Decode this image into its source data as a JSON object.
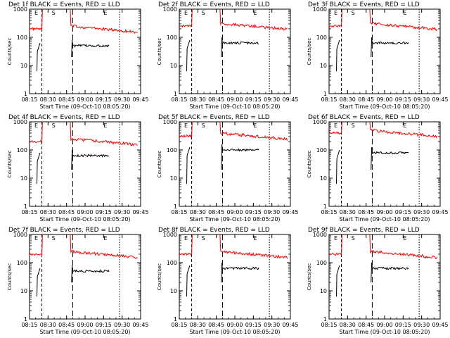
{
  "chart_data": [
    {
      "type": "line",
      "title": "Det 1f BLACK = Events, RED = LLD",
      "xlabel": "Start Time (09-Oct-10 08:05:20)",
      "ylabel": "Counts/sec",
      "x_ticks": [
        "08:15",
        "08:30",
        "08:45",
        "09:00",
        "09:15",
        "09:30",
        "09:45"
      ],
      "y_ticks": [
        "1",
        "10",
        "100",
        "1000"
      ],
      "scale": "log-y",
      "markers": [
        "E",
        "S",
        "E"
      ],
      "vertical_lines_at": [
        "08:25",
        "08:50",
        "09:28"
      ],
      "series": [
        {
          "color": "#ff0000",
          "values": []
        },
        {
          "color": "#000000",
          "values": []
        }
      ]
    },
    {
      "type": "line",
      "title": "Det 2f BLACK = Events, RED = LLD",
      "xlabel": "Start Time (09-Oct-10 08:05:20)",
      "ylabel": "Counts/sec",
      "x_ticks": [
        "08:15",
        "08:30",
        "08:45",
        "09:00",
        "09:15",
        "09:30",
        "09:45"
      ],
      "y_ticks": [
        "1",
        "10",
        "100",
        "1000"
      ],
      "scale": "log-y",
      "markers": [
        "E",
        "S",
        "E"
      ],
      "vertical_lines_at": [
        "08:25",
        "08:50",
        "09:28"
      ],
      "series": [
        {
          "color": "#ff0000",
          "values": []
        },
        {
          "color": "#000000",
          "values": []
        }
      ]
    },
    {
      "type": "line",
      "title": "Det 3f BLACK = Events, RED = LLD",
      "xlabel": "Start Time (09-Oct-10 08:05:20)",
      "ylabel": "Counts/sec",
      "x_ticks": [
        "08:15",
        "08:30",
        "08:45",
        "09:00",
        "09:15",
        "09:30",
        "09:45"
      ],
      "y_ticks": [
        "1",
        "10",
        "100",
        "1000"
      ],
      "scale": "log-y",
      "markers": [
        "E",
        "S",
        "E"
      ],
      "vertical_lines_at": [
        "08:25",
        "08:50",
        "09:28"
      ],
      "series": [
        {
          "color": "#ff0000",
          "values": []
        },
        {
          "color": "#000000",
          "values": []
        }
      ]
    },
    {
      "type": "line",
      "title": "Det 4f BLACK = Events, RED = LLD",
      "xlabel": "Start Time (09-Oct-10 08:05:20)",
      "ylabel": "Counts/sec",
      "x_ticks": [
        "08:15",
        "08:30",
        "08:45",
        "09:00",
        "09:15",
        "09:30",
        "09:45"
      ],
      "y_ticks": [
        "1",
        "10",
        "100",
        "1000"
      ],
      "scale": "log-y",
      "markers": [
        "E",
        "S",
        "E"
      ],
      "vertical_lines_at": [
        "08:25",
        "08:50",
        "09:28"
      ],
      "series": [
        {
          "color": "#ff0000",
          "values": []
        },
        {
          "color": "#000000",
          "values": []
        }
      ]
    },
    {
      "type": "line",
      "title": "Det 5f BLACK = Events, RED = LLD",
      "xlabel": "Start Time (09-Oct-10 08:05:20)",
      "ylabel": "Counts/sec",
      "x_ticks": [
        "08:15",
        "08:30",
        "08:45",
        "09:00",
        "09:15",
        "09:30",
        "09:45"
      ],
      "y_ticks": [
        "1",
        "10",
        "100",
        "1000"
      ],
      "scale": "log-y",
      "markers": [
        "E",
        "S",
        "E"
      ],
      "vertical_lines_at": [
        "08:25",
        "08:50",
        "09:28"
      ],
      "series": [
        {
          "color": "#ff0000",
          "values": []
        },
        {
          "color": "#000000",
          "values": []
        }
      ]
    },
    {
      "type": "line",
      "title": "Det 6f BLACK = Events, RED = LLD",
      "xlabel": "Start Time (09-Oct-10 08:05:20)",
      "ylabel": "Counts/sec",
      "x_ticks": [
        "08:15",
        "08:30",
        "08:45",
        "09:00",
        "09:15",
        "09:30",
        "09:45"
      ],
      "y_ticks": [
        "1",
        "10",
        "100",
        "1000"
      ],
      "scale": "log-y",
      "markers": [
        "E",
        "S",
        "E"
      ],
      "vertical_lines_at": [
        "08:25",
        "08:50",
        "09:28"
      ],
      "series": [
        {
          "color": "#ff0000",
          "values": []
        },
        {
          "color": "#000000",
          "values": []
        }
      ]
    },
    {
      "type": "line",
      "title": "Det 7f BLACK = Events, RED = LLD",
      "xlabel": "Start Time (09-Oct-10 08:05:20)",
      "ylabel": "Counts/sec",
      "x_ticks": [
        "08:15",
        "08:30",
        "08:45",
        "09:00",
        "09:15",
        "09:30",
        "09:45"
      ],
      "y_ticks": [
        "1",
        "10",
        "100",
        "1000"
      ],
      "scale": "log-y",
      "markers": [
        "E",
        "S",
        "E"
      ],
      "vertical_lines_at": [
        "08:25",
        "08:50",
        "09:28"
      ],
      "series": [
        {
          "color": "#ff0000",
          "values": []
        },
        {
          "color": "#000000",
          "values": []
        }
      ]
    },
    {
      "type": "line",
      "title": "Det 8f BLACK = Events, RED = LLD",
      "xlabel": "Start Time (09-Oct-10 08:05:20)",
      "ylabel": "Counts/sec",
      "x_ticks": [
        "08:15",
        "08:30",
        "08:45",
        "09:00",
        "09:15",
        "09:30",
        "09:45"
      ],
      "y_ticks": [
        "1",
        "10",
        "100",
        "1000"
      ],
      "scale": "log-y",
      "markers": [
        "E",
        "S",
        "E"
      ],
      "vertical_lines_at": [
        "08:25",
        "08:50",
        "09:28"
      ],
      "series": [
        {
          "color": "#ff0000",
          "values": []
        },
        {
          "color": "#000000",
          "values": []
        }
      ]
    },
    {
      "type": "line",
      "title": "Det 9f BLACK = Events, RED = LLD",
      "xlabel": "Start Time (09-Oct-10 08:05:20)",
      "ylabel": "Counts/sec",
      "x_ticks": [
        "08:15",
        "08:30",
        "08:45",
        "09:00",
        "09:15",
        "09:30",
        "09:45"
      ],
      "y_ticks": [
        "1",
        "10",
        "100",
        "1000"
      ],
      "scale": "log-y",
      "markers": [
        "E",
        "S",
        "E"
      ],
      "vertical_lines_at": [
        "08:25",
        "08:50",
        "09:28"
      ],
      "series": [
        {
          "color": "#ff0000",
          "values": []
        },
        {
          "color": "#000000",
          "values": []
        }
      ]
    }
  ]
}
